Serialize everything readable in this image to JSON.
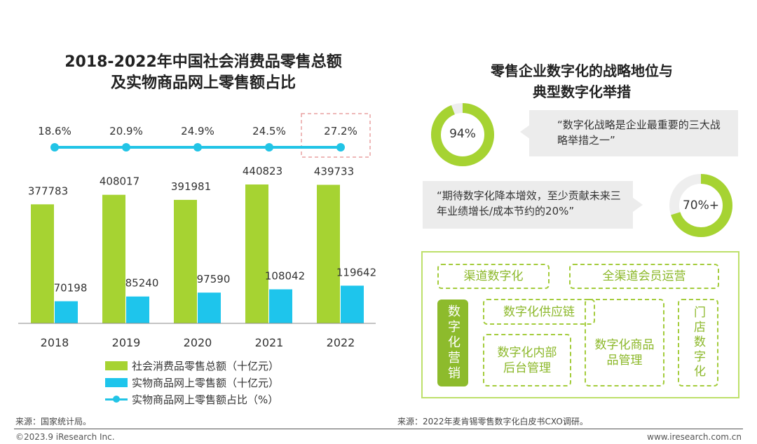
{
  "left": {
    "title_line1": "2018-2022年中国社会消费品零售总额",
    "title_line2": "及实物商品网上零售额占比",
    "source": "来源：国家统计局。"
  },
  "chart_data": {
    "type": "bar",
    "categories": [
      "2018",
      "2019",
      "2020",
      "2021",
      "2022"
    ],
    "series": [
      {
        "name": "社会消费品零售总额（十亿元）",
        "kind": "bar",
        "color": "#a6d332",
        "values": [
          377783,
          408017,
          391981,
          440823,
          439733
        ]
      },
      {
        "name": "实物商品网上零售额（十亿元）",
        "kind": "bar",
        "color": "#1ec5ec",
        "values": [
          70198,
          85240,
          97590,
          108042,
          119642
        ]
      },
      {
        "name": "实物商品网上零售额占比（%）",
        "kind": "line",
        "color": "#22c4e6",
        "values": [
          18.6,
          20.9,
          24.9,
          24.5,
          27.2
        ],
        "labels": [
          "18.6%",
          "20.9%",
          "24.9%",
          "24.5%",
          "27.2%"
        ]
      }
    ],
    "ylim": [
      0,
      480000
    ],
    "highlight_category": "2022",
    "title": "2018-2022年中国社会消费品零售总额及实物商品网上零售额占比"
  },
  "right": {
    "title_line1": "零售企业数字化的战略地位与",
    "title_line2": "典型数字化举措",
    "stat1": {
      "value": 94,
      "label": "94%",
      "quote": "“数字化战略是企业最重要的三大战略举措之一”"
    },
    "stat2": {
      "value": 70,
      "label": "70%+",
      "quote": "“期待数字化降本增效，至少贡献未来三年业绩增长/成本节约的20%”"
    },
    "tags": {
      "channel": "渠道数字化",
      "membership": "全渠道会员运营",
      "marketing": "数字化营销",
      "supply_chain": "数字化供应链",
      "backoffice_line1": "数字化内部",
      "backoffice_line2": "后台管理",
      "merch_line1": "数字化商品",
      "merch_line2": "品管理",
      "store": "门店数字化"
    },
    "source": "来源：2022年麦肯锡零售数字化白皮书CXO调研。"
  },
  "footer": {
    "copyright": "©2023.9 iResearch Inc.",
    "website": "www.iresearch.com.cn"
  },
  "colors": {
    "green": "#a6d332",
    "blue": "#1ec5ec",
    "donut_track": "#eeeeee",
    "highlight": "#e8a0a0"
  }
}
